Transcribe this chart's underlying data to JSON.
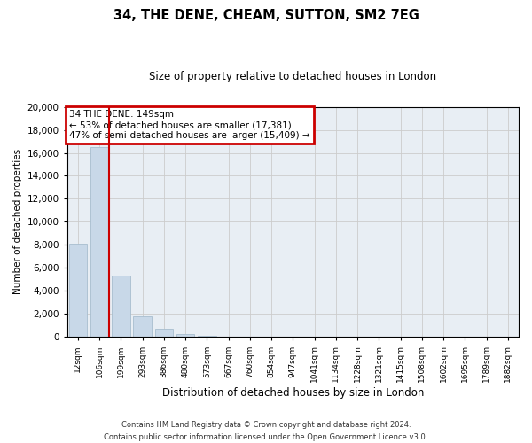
{
  "title": "34, THE DENE, CHEAM, SUTTON, SM2 7EG",
  "subtitle": "Size of property relative to detached houses in London",
  "xlabel": "Distribution of detached houses by size in London",
  "ylabel": "Number of detached properties",
  "bar_color": "#c8d8e8",
  "bar_edge_color": "#a8bece",
  "vline_color": "#cc0000",
  "vline_x": 1.43,
  "annotation_line1": "34 THE DENE: 149sqm",
  "annotation_line2": "← 53% of detached houses are smaller (17,381)",
  "annotation_line3": "47% of semi-detached houses are larger (15,409) →",
  "annotation_box_color": "#cc0000",
  "annotation_box_bg": "white",
  "categories": [
    "12sqm",
    "106sqm",
    "199sqm",
    "293sqm",
    "386sqm",
    "480sqm",
    "573sqm",
    "667sqm",
    "760sqm",
    "854sqm",
    "947sqm",
    "1041sqm",
    "1134sqm",
    "1228sqm",
    "1321sqm",
    "1415sqm",
    "1508sqm",
    "1602sqm",
    "1695sqm",
    "1789sqm",
    "1882sqm"
  ],
  "values": [
    8100,
    16500,
    5300,
    1800,
    750,
    280,
    130,
    0,
    0,
    0,
    0,
    0,
    0,
    0,
    0,
    0,
    0,
    0,
    0,
    0,
    0
  ],
  "ylim": [
    0,
    20000
  ],
  "yticks": [
    0,
    2000,
    4000,
    6000,
    8000,
    10000,
    12000,
    14000,
    16000,
    18000,
    20000
  ],
  "grid_color": "#cccccc",
  "bg_color": "#e8eef4",
  "footer_line1": "Contains HM Land Registry data © Crown copyright and database right 2024.",
  "footer_line2": "Contains public sector information licensed under the Open Government Licence v3.0."
}
